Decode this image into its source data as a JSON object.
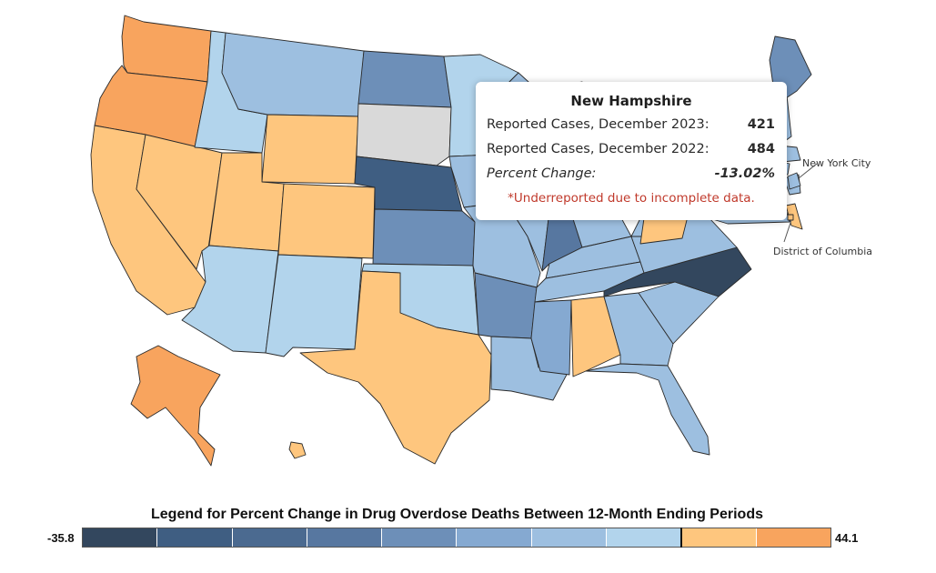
{
  "colors": {
    "c1": "#33475e",
    "c2": "#3f5e82",
    "c3": "#5777a0",
    "c4": "#6d8fb8",
    "c5": "#85a9d1",
    "c6": "#9dbfe0",
    "c7": "#b2d4ec",
    "c8": "#fec67e",
    "c9": "#f8a45e",
    "nodata": "#d9d9d9"
  },
  "states": [
    {
      "id": "WA",
      "name": "Washington",
      "color_key": "c9"
    },
    {
      "id": "OR",
      "name": "Oregon",
      "color_key": "c9"
    },
    {
      "id": "CA",
      "name": "California",
      "color_key": "c8"
    },
    {
      "id": "NV",
      "name": "Nevada",
      "color_key": "c8"
    },
    {
      "id": "ID",
      "name": "Idaho",
      "color_key": "c7"
    },
    {
      "id": "MT",
      "name": "Montana",
      "color_key": "c6"
    },
    {
      "id": "WY",
      "name": "Wyoming",
      "color_key": "c8"
    },
    {
      "id": "UT",
      "name": "Utah",
      "color_key": "c8"
    },
    {
      "id": "CO",
      "name": "Colorado",
      "color_key": "c8"
    },
    {
      "id": "AZ",
      "name": "Arizona",
      "color_key": "c7"
    },
    {
      "id": "NM",
      "name": "New Mexico",
      "color_key": "c7"
    },
    {
      "id": "ND",
      "name": "North Dakota",
      "color_key": "c4"
    },
    {
      "id": "SD",
      "name": "South Dakota",
      "color_key": "nodata"
    },
    {
      "id": "NE",
      "name": "Nebraska",
      "color_key": "c2"
    },
    {
      "id": "KS",
      "name": "Kansas",
      "color_key": "c4"
    },
    {
      "id": "OK",
      "name": "Oklahoma",
      "color_key": "c7"
    },
    {
      "id": "TX",
      "name": "Texas",
      "color_key": "c8"
    },
    {
      "id": "MN",
      "name": "Minnesota",
      "color_key": "c7"
    },
    {
      "id": "IA",
      "name": "Iowa",
      "color_key": "c6"
    },
    {
      "id": "MO",
      "name": "Missouri",
      "color_key": "c6"
    },
    {
      "id": "AR",
      "name": "Arkansas",
      "color_key": "c4"
    },
    {
      "id": "LA",
      "name": "Louisiana",
      "color_key": "c6"
    },
    {
      "id": "WI",
      "name": "Wisconsin",
      "color_key": "c6"
    },
    {
      "id": "IL",
      "name": "Illinois",
      "color_key": "c6"
    },
    {
      "id": "IN",
      "name": "Indiana",
      "color_key": "c3"
    },
    {
      "id": "MI",
      "name": "Michigan",
      "color_key": "c6"
    },
    {
      "id": "OH",
      "name": "Ohio",
      "color_key": "c6"
    },
    {
      "id": "KY",
      "name": "Kentucky",
      "color_key": "c6"
    },
    {
      "id": "TN",
      "name": "Tennessee",
      "color_key": "c6"
    },
    {
      "id": "MS",
      "name": "Mississippi",
      "color_key": "c5"
    },
    {
      "id": "AL",
      "name": "Alabama",
      "color_key": "c8"
    },
    {
      "id": "GA",
      "name": "Georgia",
      "color_key": "c6"
    },
    {
      "id": "FL",
      "name": "Florida",
      "color_key": "c6"
    },
    {
      "id": "SC",
      "name": "South Carolina",
      "color_key": "c6"
    },
    {
      "id": "NC",
      "name": "North Carolina",
      "color_key": "c1"
    },
    {
      "id": "VA",
      "name": "Virginia",
      "color_key": "c6"
    },
    {
      "id": "WV",
      "name": "West Virginia",
      "color_key": "c6"
    },
    {
      "id": "PA",
      "name": "Pennsylvania",
      "color_key": "c8"
    },
    {
      "id": "NY",
      "name": "New York",
      "color_key": "c6"
    },
    {
      "id": "VT",
      "name": "Vermont",
      "color_key": "c6"
    },
    {
      "id": "NH",
      "name": "New Hampshire",
      "color_key": "c6"
    },
    {
      "id": "ME",
      "name": "Maine",
      "color_key": "c4"
    },
    {
      "id": "MA",
      "name": "Massachusetts",
      "color_key": "c6"
    },
    {
      "id": "CT",
      "name": "Connecticut",
      "color_key": "c6"
    },
    {
      "id": "RI",
      "name": "Rhode Island",
      "color_key": "c6"
    },
    {
      "id": "NJ",
      "name": "New Jersey",
      "color_key": "c6"
    },
    {
      "id": "DE",
      "name": "Delaware",
      "color_key": "c8"
    },
    {
      "id": "MD",
      "name": "Maryland",
      "color_key": "c6"
    },
    {
      "id": "DC",
      "name": "District of Columbia",
      "color_key": "c8"
    },
    {
      "id": "NYC",
      "name": "New York City",
      "color_key": "c6"
    },
    {
      "id": "AK",
      "name": "Alaska",
      "color_key": "c9"
    },
    {
      "id": "HI",
      "name": "Hawaii",
      "color_key": "c8"
    }
  ],
  "callouts": {
    "nyc": "New York City",
    "dc": "District of Columbia"
  },
  "tooltip": {
    "title": "New Hampshire",
    "row1_label": "Reported Cases, December 2023:",
    "row1_value": "421",
    "row2_label": "Reported Cases, December 2022:",
    "row2_value": "484",
    "row3_label": "Percent Change:",
    "row3_value": "-13.02%",
    "note": "*Underreported due to incomplete data."
  },
  "legend": {
    "title": "Legend for Percent Change in Drug Overdose Deaths Between 12-Month Ending Periods",
    "min_label": "-35.8",
    "max_label": "44.1",
    "swatches": [
      "#33475e",
      "#3f5e82",
      "#4b6a90",
      "#5777a0",
      "#6d8fb8",
      "#85a9d1",
      "#9dbfe0",
      "#b2d4ec",
      "#fec67e",
      "#f8a45e"
    ]
  }
}
